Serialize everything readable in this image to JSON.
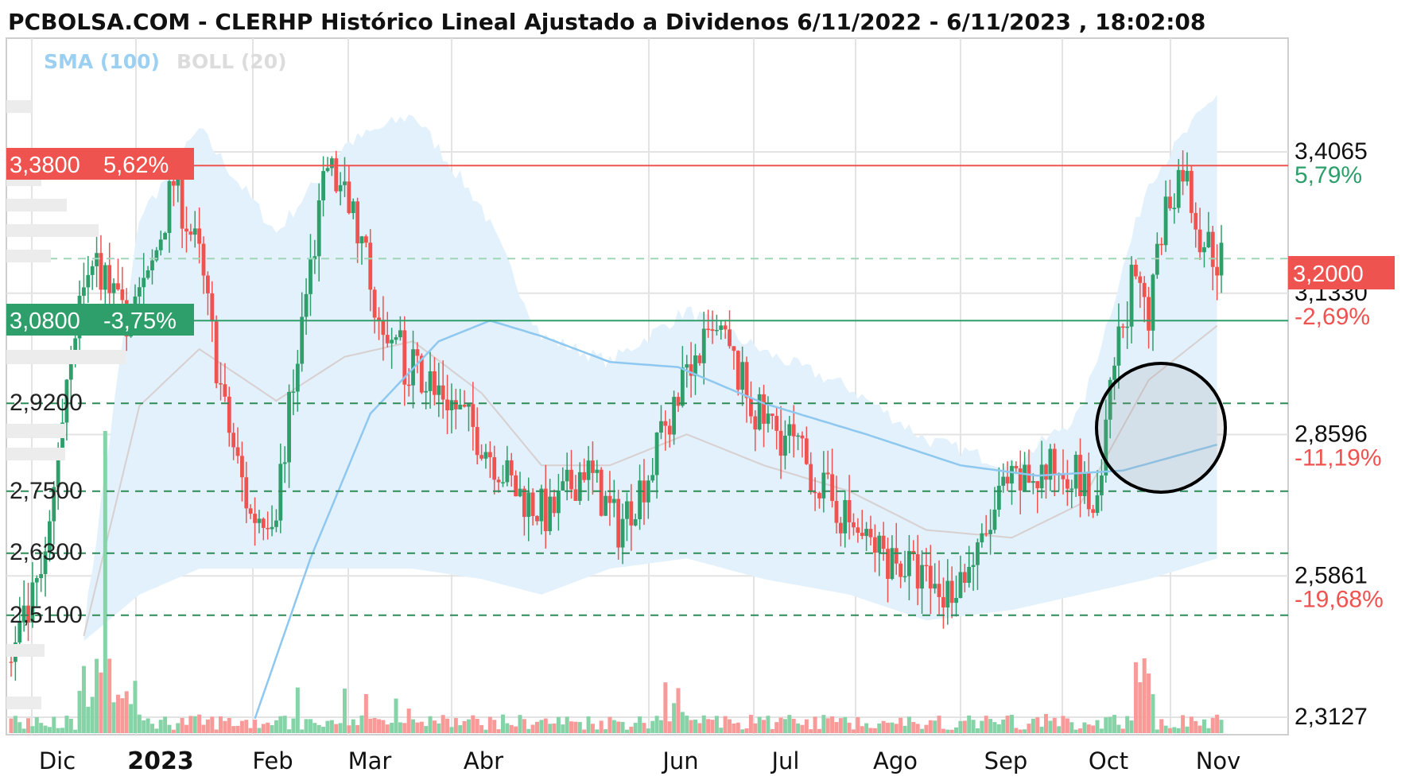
{
  "header": {
    "title": "PCBOLSA.COM - CLERHP Histórico Lineal Ajustado a Dividenos 6/11/2022 - 6/11/2023 , 18:02:08",
    "indicator_sma": "SMA (100)",
    "indicator_boll": "BOLL (20)"
  },
  "colors": {
    "up": "#2e9e6a",
    "down": "#ef5350",
    "sma": "#8ec8f0",
    "boll_fill": "#e2f1fc",
    "boll_mid": "#d8cfcf",
    "resistance": "#ef5350",
    "support": "#2e9e6a",
    "grid": "#e3e3e3",
    "dashed": "#2e8b57"
  },
  "levels": {
    "resistance": {
      "value": 3.38,
      "label": "3,3800",
      "pct": "5,62%"
    },
    "support": {
      "value": 3.08,
      "label": "3,0800",
      "pct": "-3,75%"
    },
    "current": {
      "value": 3.2,
      "label": "3,2000"
    },
    "dashed": [
      {
        "value": 2.92,
        "label": "2,9200"
      },
      {
        "value": 2.75,
        "label": "2,7500"
      },
      {
        "value": 2.63,
        "label": "2,6300"
      },
      {
        "value": 2.51,
        "label": "2,5100"
      }
    ]
  },
  "chart_data": {
    "type": "candlestick",
    "x_labels": [
      {
        "label": "Dic",
        "bold": false
      },
      {
        "label": "2023",
        "bold": true
      },
      {
        "label": "Feb",
        "bold": false
      },
      {
        "label": "Mar",
        "bold": false
      },
      {
        "label": "Abr",
        "bold": false
      },
      {
        "label": "Jun",
        "bold": false
      },
      {
        "label": "Jul",
        "bold": false
      },
      {
        "label": "Ago",
        "bold": false
      },
      {
        "label": "Sep",
        "bold": false
      },
      {
        "label": "Oct",
        "bold": false
      },
      {
        "label": "Nov",
        "bold": false
      }
    ],
    "right_axis": [
      {
        "value": 3.4065,
        "label": "3,4065",
        "pct": "5,79%",
        "up": true
      },
      {
        "value": 3.133,
        "label": "3,1330",
        "pct": "-2,69%",
        "up": false
      },
      {
        "value": 2.8596,
        "label": "2,8596",
        "pct": "-11,19%",
        "up": false
      },
      {
        "value": 2.5861,
        "label": "2,5861",
        "pct": "-19,68%",
        "up": false
      },
      {
        "value": 2.3127,
        "label": "2,3127",
        "pct": "",
        "up": false
      }
    ],
    "ylim": [
      2.3127,
      3.4065
    ],
    "close_path": [
      [
        0,
        2.42
      ],
      [
        8,
        2.6
      ],
      [
        14,
        3.05
      ],
      [
        20,
        3.2
      ],
      [
        26,
        3.08
      ],
      [
        32,
        3.15
      ],
      [
        38,
        3.35
      ],
      [
        44,
        3.2
      ],
      [
        50,
        2.9
      ],
      [
        56,
        2.7
      ],
      [
        62,
        2.72
      ],
      [
        68,
        3.08
      ],
      [
        74,
        3.38
      ],
      [
        80,
        3.28
      ],
      [
        86,
        3.1
      ],
      [
        92,
        3.0
      ],
      [
        100,
        2.95
      ],
      [
        110,
        2.85
      ],
      [
        118,
        2.75
      ],
      [
        126,
        2.7
      ],
      [
        134,
        2.8
      ],
      [
        142,
        2.68
      ],
      [
        150,
        2.8
      ],
      [
        158,
        3.0
      ],
      [
        166,
        3.05
      ],
      [
        174,
        2.9
      ],
      [
        182,
        2.85
      ],
      [
        190,
        2.75
      ],
      [
        200,
        2.65
      ],
      [
        210,
        2.6
      ],
      [
        218,
        2.55
      ],
      [
        226,
        2.62
      ],
      [
        232,
        2.75
      ],
      [
        240,
        2.78
      ],
      [
        248,
        2.8
      ],
      [
        254,
        2.7
      ],
      [
        258,
        3.0
      ],
      [
        262,
        3.15
      ],
      [
        266,
        3.1
      ],
      [
        270,
        3.3
      ],
      [
        274,
        3.38
      ],
      [
        278,
        3.25
      ],
      [
        282,
        3.2
      ]
    ],
    "sma_path": [
      [
        57,
        2.31
      ],
      [
        70,
        2.62
      ],
      [
        84,
        2.9
      ],
      [
        100,
        3.04
      ],
      [
        112,
        3.08
      ],
      [
        124,
        3.05
      ],
      [
        140,
        3.0
      ],
      [
        156,
        2.99
      ],
      [
        176,
        2.92
      ],
      [
        200,
        2.86
      ],
      [
        222,
        2.8
      ],
      [
        240,
        2.78
      ],
      [
        260,
        2.79
      ],
      [
        282,
        2.84
      ]
    ],
    "boll": {
      "upper": [
        [
          17,
          2.48
        ],
        [
          30,
          3.28
        ],
        [
          44,
          3.45
        ],
        [
          62,
          3.25
        ],
        [
          78,
          3.42
        ],
        [
          94,
          3.48
        ],
        [
          110,
          3.3
        ],
        [
          124,
          3.05
        ],
        [
          140,
          3.0
        ],
        [
          158,
          3.1
        ],
        [
          176,
          3.02
        ],
        [
          196,
          2.95
        ],
        [
          214,
          2.85
        ],
        [
          234,
          2.8
        ],
        [
          250,
          2.9
        ],
        [
          266,
          3.35
        ],
        [
          282,
          3.52
        ]
      ],
      "lower": [
        [
          17,
          2.46
        ],
        [
          30,
          2.55
        ],
        [
          44,
          2.6
        ],
        [
          62,
          2.6
        ],
        [
          78,
          2.6
        ],
        [
          94,
          2.6
        ],
        [
          110,
          2.58
        ],
        [
          124,
          2.55
        ],
        [
          140,
          2.6
        ],
        [
          158,
          2.62
        ],
        [
          176,
          2.58
        ],
        [
          196,
          2.55
        ],
        [
          214,
          2.5
        ],
        [
          234,
          2.52
        ],
        [
          250,
          2.55
        ],
        [
          266,
          2.58
        ],
        [
          282,
          2.62
        ]
      ]
    }
  }
}
